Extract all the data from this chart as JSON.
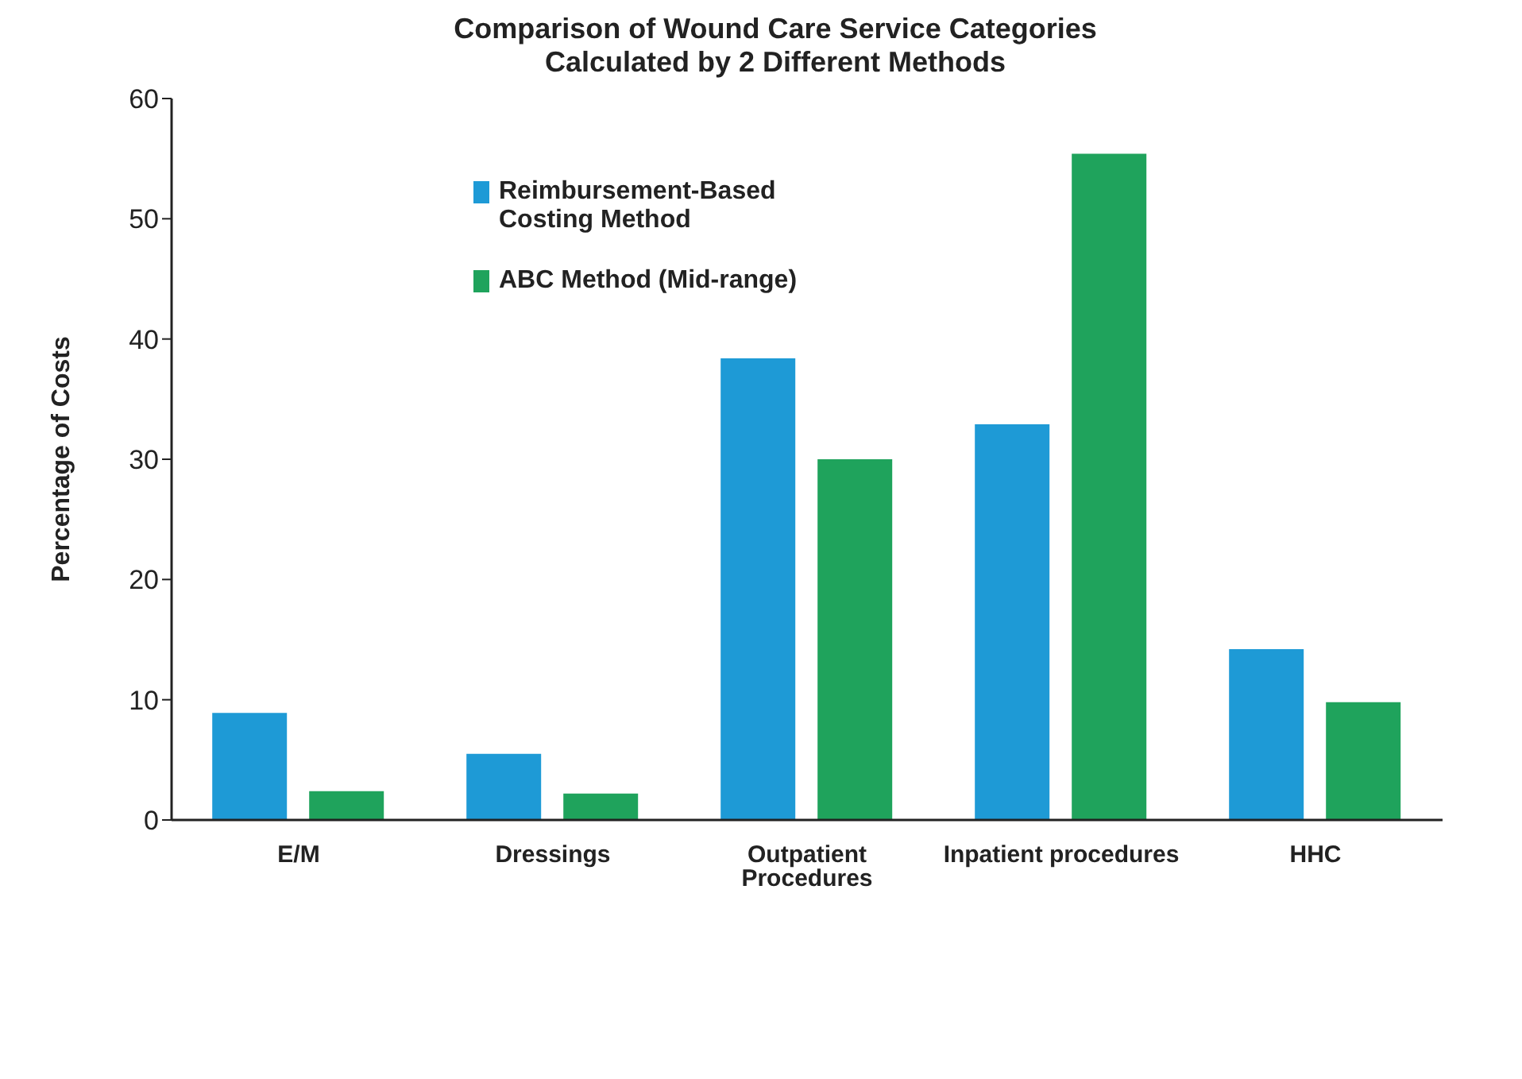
{
  "chart_data": {
    "type": "bar",
    "title": "Comparison of Wound Care Service Categories Calculated by 2 Different Methods",
    "ylabel": "Percentage of Costs",
    "categories": [
      "E/M",
      "Dressings",
      "Outpatient Procedures",
      "Inpatient procedures",
      "HHC"
    ],
    "series": [
      {
        "name": "Reimbursement-Based Costing Method",
        "color": "#1e9ad6",
        "values": [
          8.9,
          5.5,
          38.4,
          32.9,
          14.2
        ]
      },
      {
        "name": "ABC Method (Mid-range)",
        "color": "#1fa35c",
        "values": [
          2.4,
          2.2,
          30.0,
          55.4,
          9.8
        ]
      }
    ],
    "ylim": [
      0,
      60
    ],
    "yticks": [
      0,
      10,
      20,
      30,
      40,
      50,
      60
    ],
    "grid": false,
    "legend": "top left"
  }
}
